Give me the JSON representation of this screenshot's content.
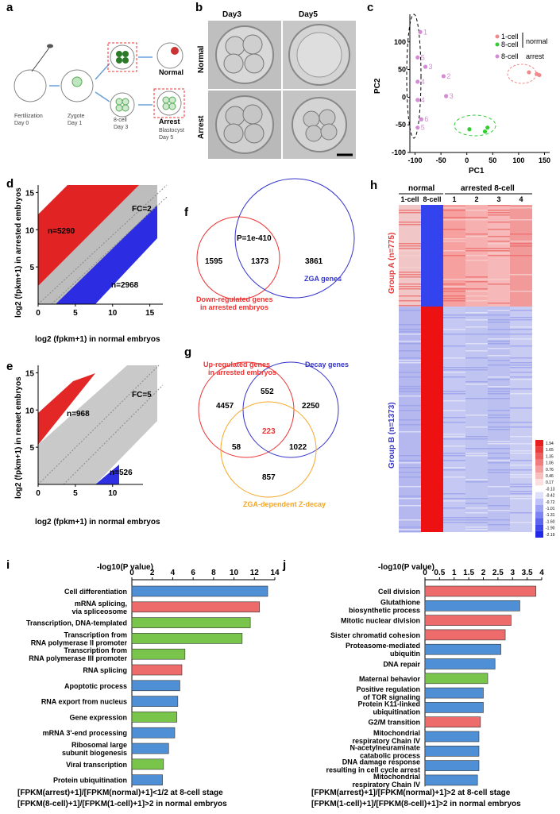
{
  "panels": {
    "a": "a",
    "b": "b",
    "c": "c",
    "d": "d",
    "e": "e",
    "f": "f",
    "g": "g",
    "h": "h",
    "i": "i",
    "j": "j"
  },
  "panel_a": {
    "stages": [
      "Fertilization\nDay 0",
      "Zygote\nDay 1",
      "8-cell\nDay 3",
      "Blastocyst\nDay 5"
    ],
    "normal_label": "Normal",
    "arrest_label": "Arrest"
  },
  "panel_b": {
    "col1": "Day3",
    "col2": "Day5",
    "row1": "Normal",
    "row2": "Arrest"
  },
  "chart_data": [
    {
      "id": "c",
      "type": "scatter",
      "xlabel": "PC1",
      "ylabel": "PC2",
      "xticks": [
        "-100",
        "-50",
        "0",
        "50",
        "100",
        "150"
      ],
      "yticks": [
        "100",
        "50",
        "0",
        "-50",
        "-100"
      ],
      "xlim": [
        -110,
        160
      ],
      "ylim": [
        -100,
        150
      ],
      "legend": [
        "1-cell",
        "8-cell",
        "8-cell",
        "normal",
        "arrest"
      ],
      "series": [
        {
          "name": "1-cell",
          "color": "#f08a8a",
          "points": [
            [
              120,
              45
            ],
            [
              135,
              42
            ],
            [
              140,
              40
            ]
          ]
        },
        {
          "name": "8-cell normal",
          "color": "#33cc33",
          "points": [
            [
              5,
              -58
            ],
            [
              35,
              -62
            ],
            [
              40,
              -55
            ]
          ]
        },
        {
          "name": "8-cell arrest",
          "color": "#d48ad4",
          "points": [
            [
              -90,
              118
            ],
            [
              -95,
              72
            ],
            [
              -45,
              38
            ],
            [
              -95,
              28
            ],
            [
              -80,
              55
            ],
            [
              -40,
              2
            ],
            [
              -95,
              -5
            ],
            [
              -88,
              -40
            ],
            [
              -95,
              -55
            ]
          ],
          "labels": [
            "1",
            "5",
            "2",
            "4",
            "3",
            "3",
            "4",
            "6",
            "5"
          ]
        }
      ]
    },
    {
      "id": "d",
      "type": "scatter",
      "xlabel": "log2 (fpkm+1) in normal embryos",
      "ylabel": "log2 (fpkm+1) in arrested embryos",
      "xticks": [
        "0",
        "5",
        "10",
        "15"
      ],
      "yticks": [
        "15",
        "10",
        "5"
      ],
      "annotations": [
        "n=5290",
        "n=2968",
        "FC=2"
      ]
    },
    {
      "id": "e",
      "type": "scatter",
      "xlabel": "log2 (fpkm+1) in normal embryos",
      "ylabel": "log2 (fpkm+1) in reeaet embryos",
      "xticks": [
        "0",
        "5",
        "10"
      ],
      "yticks": [
        "15",
        "10",
        "5"
      ],
      "annotations": [
        "n=968",
        "n=526",
        "FC=5"
      ]
    },
    {
      "id": "i",
      "type": "bar",
      "title": "-log10(P value)",
      "xticks": [
        "0",
        "2",
        "4",
        "6",
        "8",
        "10",
        "12",
        "14"
      ],
      "xlim": [
        0,
        14
      ],
      "categories": [
        "Cell differentiation",
        "mRNA splicing,\nvia spliceosome",
        "Transcription, DNA-templated",
        "Transcription from\nRNA polymerase II promoter",
        "Transcription from\nRNA polymerase III promoter",
        "RNA splicing",
        "Apoptotic process",
        "RNA export from nucleus",
        "Gene expression",
        "mRNA 3'-end processing",
        "Ribosomal large\nsubunit biogenesis",
        "Viral transcription",
        "Protein ubiquitination"
      ],
      "values": [
        13.3,
        12.5,
        11.6,
        10.8,
        5.2,
        4.9,
        4.7,
        4.5,
        4.4,
        4.2,
        3.6,
        3.1,
        3.0
      ],
      "colors": [
        "#4f8fd6",
        "#ee6b6b",
        "#79c44a",
        "#79c44a",
        "#79c44a",
        "#ee6b6b",
        "#4f8fd6",
        "#4f8fd6",
        "#79c44a",
        "#4f8fd6",
        "#4f8fd6",
        "#79c44a",
        "#4f8fd6"
      ],
      "footer": [
        "[FPKM(arrest)+1]/[FPKM(normal)+1]<1/2 at 8-cell stage",
        "[FPKM(8-cell)+1]/[FPKM(1-cell)+1]>2 in normal embryos"
      ]
    },
    {
      "id": "j",
      "type": "bar",
      "title": "-log10(P value)",
      "xticks": [
        "0",
        "0.5",
        "1",
        "1.5",
        "2",
        "2.5",
        "3",
        "3.5",
        "4"
      ],
      "xlim": [
        0,
        4
      ],
      "categories": [
        "Cell division",
        "Glutathione\nbiosynthetic process",
        "Mitotic nuclear division",
        "Sister chromatid cohesion",
        "Proteasome-mediated\nubiquitin",
        "DNA repair",
        "Maternal behavior",
        "Positive regulation\nof TOR signaling",
        "Protein K11-linked\nubiquitination",
        "G2/M transition",
        "Mitochondrial\nrespiratory Chain IV",
        "N-acetylneuraminate\ncatabolic process",
        "DNA damage response\nresulting in cell cycle arrest",
        "Mitochondrial\nrespiratory Chain IV"
      ],
      "values": [
        3.8,
        3.25,
        2.95,
        2.75,
        2.6,
        2.4,
        2.15,
        2.0,
        2.0,
        1.9,
        1.85,
        1.85,
        1.85,
        1.8
      ],
      "colors": [
        "#ee6b6b",
        "#4f8fd6",
        "#ee6b6b",
        "#ee6b6b",
        "#4f8fd6",
        "#4f8fd6",
        "#79c44a",
        "#4f8fd6",
        "#4f8fd6",
        "#ee6b6b",
        "#4f8fd6",
        "#4f8fd6",
        "#4f8fd6",
        "#4f8fd6"
      ],
      "footer": [
        "[FPKM(arrest)+1]/[FPKM(normal)+1]>2 at 8-cell stage",
        "[FPKM(1-cell)+1]/[FPKM(8-cell)+1]>2 in normal embryos"
      ]
    }
  ],
  "panel_f": {
    "left": "1595",
    "mid": "1373",
    "right": "3861",
    "p": "P=1e-410",
    "left_name": "Down-regulated genes\nin arrested embryos",
    "right_name": "ZGA genes"
  },
  "panel_g": {
    "a": "4457",
    "ab": "552",
    "b": "2250",
    "abc": "223",
    "ac": "58",
    "bc": "1022",
    "c": "857",
    "a_name": "Up-regulated genes\nin arrested embryos",
    "b_name": "Decay genes",
    "c_name": "ZGA-dependent Z-decay"
  },
  "panel_h": {
    "normal": "normal",
    "arrested": "arrested 8-cell",
    "cols": [
      "1-cell",
      "8-cell",
      "1",
      "2",
      "3",
      "4"
    ],
    "groupA": "Group A (n=775)",
    "groupB": "Group B (n=1373)",
    "scale": [
      "1.94",
      "1.65",
      "1.35",
      "1.06",
      "0.76",
      "0.46",
      "0.17",
      "-0.13",
      "-0.42",
      "-0.72",
      "-1.01",
      "-1.31",
      "-1.60",
      "-1.90",
      "-2.19"
    ]
  }
}
